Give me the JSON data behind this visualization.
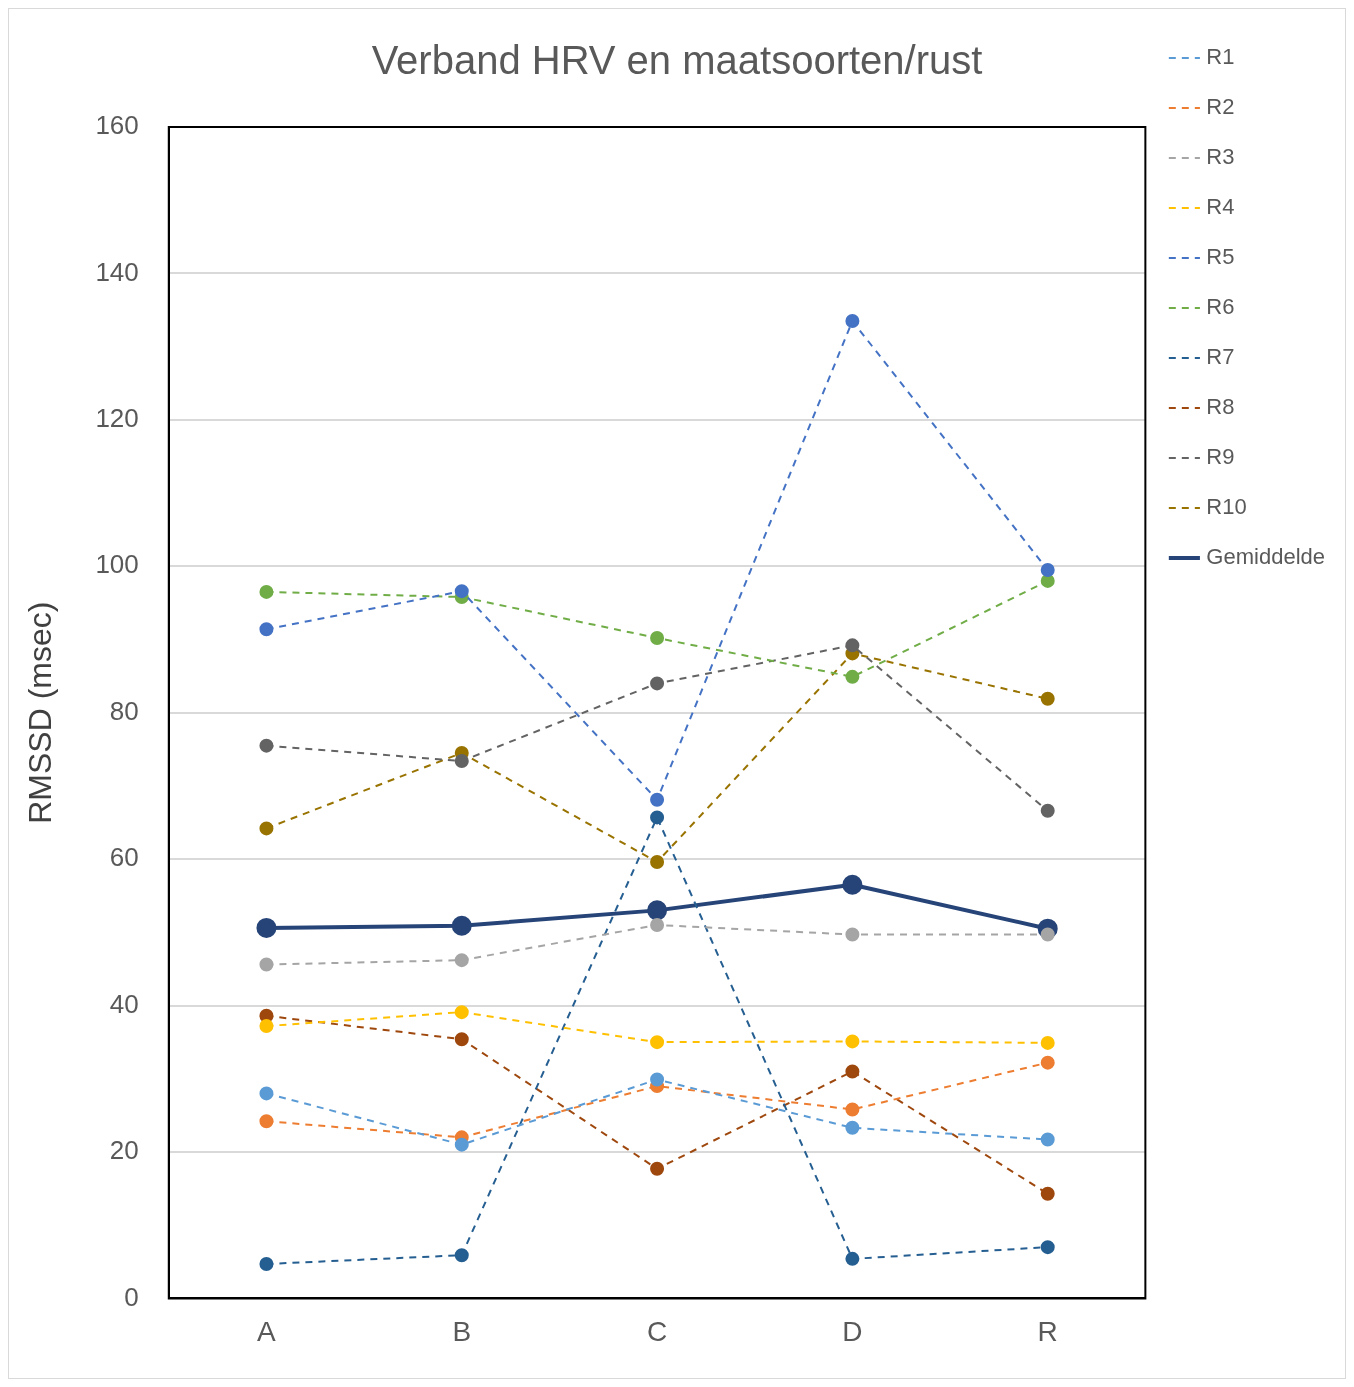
{
  "chart_data": {
    "type": "line",
    "title": "Verband HRV en maatsoorten/rust",
    "ylabel": "RMSSD (msec)",
    "categories": [
      "A",
      "B",
      "C",
      "D",
      "R"
    ],
    "ylim": [
      0,
      160
    ],
    "yticks": [
      0,
      20,
      40,
      60,
      80,
      100,
      120,
      140,
      160
    ],
    "grid": "y",
    "legend": "right",
    "marker": "circle",
    "series": [
      {
        "name": "R1",
        "color": "#5b9bd5",
        "line_style": "dashed",
        "values": [
          28.0,
          21.0,
          29.9,
          23.3,
          21.7
        ]
      },
      {
        "name": "R2",
        "color": "#ed7d31",
        "line_style": "dashed",
        "values": [
          24.2,
          22.0,
          29.0,
          25.8,
          32.2
        ]
      },
      {
        "name": "R3",
        "color": "#a5a5a5",
        "line_style": "dashed",
        "values": [
          45.6,
          46.2,
          51.0,
          49.7,
          49.7
        ]
      },
      {
        "name": "R4",
        "color": "#ffc000",
        "line_style": "dashed",
        "values": [
          37.2,
          39.1,
          35.0,
          35.1,
          34.9
        ]
      },
      {
        "name": "R5",
        "color": "#4472c4",
        "line_style": "dashed",
        "values": [
          91.4,
          96.6,
          68.1,
          133.5,
          99.5
        ]
      },
      {
        "name": "R6",
        "color": "#70ad47",
        "line_style": "dashed",
        "values": [
          96.5,
          95.8,
          90.2,
          84.9,
          98.0
        ]
      },
      {
        "name": "R7",
        "color": "#255e91",
        "line_style": "dashed",
        "values": [
          4.7,
          5.9,
          65.7,
          5.4,
          7.0
        ]
      },
      {
        "name": "R8",
        "color": "#9e480e",
        "line_style": "dashed",
        "values": [
          38.6,
          35.4,
          17.7,
          31.0,
          14.3
        ]
      },
      {
        "name": "R9",
        "color": "#636363",
        "line_style": "dashed",
        "values": [
          75.5,
          73.4,
          84.0,
          89.2,
          66.6
        ]
      },
      {
        "name": "R10",
        "color": "#997300",
        "line_style": "dashed",
        "values": [
          64.2,
          74.5,
          59.6,
          88.1,
          81.9
        ]
      },
      {
        "name": "Gemiddelde",
        "color": "#264478",
        "line_style": "solid",
        "values": [
          50.6,
          50.9,
          53.0,
          56.5,
          50.5
        ]
      }
    ]
  }
}
